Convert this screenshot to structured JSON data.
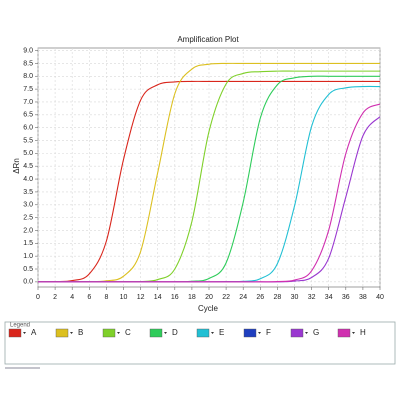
{
  "chart_data": {
    "type": "line",
    "title": "Amplification Plot",
    "xlabel": "Cycle",
    "ylabel": "ΔRn",
    "legend_title": "Legend",
    "x": [
      0,
      2,
      4,
      6,
      8,
      10,
      12,
      14,
      16,
      18,
      20,
      22,
      24,
      26,
      28,
      30,
      32,
      34,
      36,
      38,
      40
    ],
    "xlim": [
      0,
      40
    ],
    "xticks": [
      0,
      2,
      4,
      6,
      8,
      10,
      12,
      14,
      16,
      18,
      20,
      22,
      24,
      26,
      28,
      30,
      32,
      34,
      36,
      38,
      40
    ],
    "ylim": [
      -0.2,
      9.1
    ],
    "yticks": [
      {
        "value": 0,
        "label": "0.0"
      },
      0.5,
      {
        "value": 1,
        "label": "1.0"
      },
      1.5,
      {
        "value": 2,
        "label": "2.0"
      },
      2.5,
      {
        "value": 3,
        "label": "3.0"
      },
      3.5,
      {
        "value": 4,
        "label": "4.0"
      },
      4.5,
      {
        "value": 5,
        "label": "5.0"
      },
      5.5,
      {
        "value": 6,
        "label": "6.0"
      },
      6.5,
      {
        "value": 7,
        "label": "7.0"
      },
      7.5,
      {
        "value": 8,
        "label": "8.0"
      },
      8.5,
      {
        "value": 9,
        "label": "9.0"
      }
    ],
    "grid": true,
    "series": [
      {
        "name": "A",
        "color": "#d9261c",
        "values": [
          0.0,
          0.01,
          0.05,
          0.31,
          1.59,
          4.76,
          7.07,
          7.67,
          7.78,
          7.8,
          7.8,
          7.8,
          7.8,
          7.8,
          7.8,
          7.8,
          7.8,
          7.8,
          7.8,
          7.8,
          7.8
        ]
      },
      {
        "name": "B",
        "color": "#dcc020",
        "values": [
          0.0,
          0.0,
          0.0,
          0.0,
          0.04,
          0.22,
          1.18,
          4.25,
          7.32,
          8.28,
          8.47,
          8.5,
          8.5,
          8.5,
          8.5,
          8.5,
          8.5,
          8.5,
          8.5,
          8.5,
          8.5
        ]
      },
      {
        "name": "C",
        "color": "#7fd02a",
        "values": [
          0.0,
          0.0,
          0.0,
          0.0,
          0.0,
          0.0,
          0.01,
          0.09,
          0.5,
          2.35,
          5.85,
          7.7,
          8.11,
          8.18,
          8.2,
          8.2,
          8.2,
          8.2,
          8.2,
          8.2,
          8.2
        ]
      },
      {
        "name": "D",
        "color": "#2ecc5a",
        "values": [
          0.0,
          0.0,
          0.0,
          0.0,
          0.0,
          0.0,
          0.0,
          0.0,
          0.0,
          0.02,
          0.13,
          0.74,
          3.1,
          6.37,
          7.67,
          7.94,
          8.0,
          8.0,
          8.0,
          8.0,
          8.0
        ]
      },
      {
        "name": "E",
        "color": "#22c0d4",
        "values": [
          0.0,
          0.0,
          0.0,
          0.0,
          0.0,
          0.0,
          0.0,
          0.0,
          0.0,
          0.0,
          0.0,
          0.01,
          0.02,
          0.12,
          0.71,
          2.95,
          6.05,
          7.29,
          7.55,
          7.6,
          7.6
        ]
      },
      {
        "name": "F",
        "color": "#1f3fbf",
        "values": [
          null,
          null,
          null,
          null,
          null,
          null,
          null,
          null,
          null,
          null,
          null,
          null,
          null,
          null,
          null,
          null,
          null,
          null,
          null,
          null,
          null
        ]
      },
      {
        "name": "G",
        "color": "#9a38d0",
        "values": [
          0.0,
          0.0,
          0.0,
          0.0,
          0.0,
          0.0,
          0.0,
          0.0,
          0.0,
          0.0,
          0.0,
          0.0,
          0.0,
          0.0,
          0.0,
          0.03,
          0.17,
          0.92,
          3.3,
          5.68,
          6.43
        ]
      },
      {
        "name": "H",
        "color": "#d030b0",
        "values": [
          0.0,
          0.0,
          0.0,
          0.0,
          0.0,
          0.0,
          0.0,
          0.0,
          0.0,
          0.0,
          0.0,
          0.0,
          0.0,
          0.0,
          0.01,
          0.07,
          0.43,
          2.01,
          4.99,
          6.57,
          6.92
        ]
      }
    ]
  }
}
